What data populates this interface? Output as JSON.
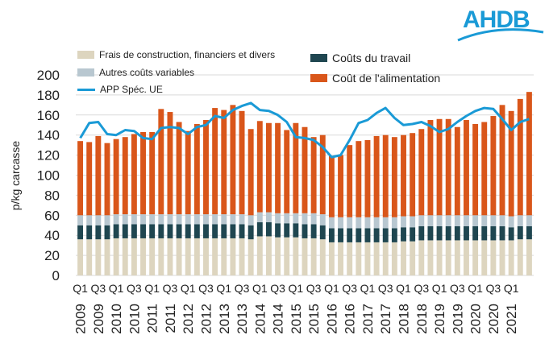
{
  "logo": {
    "text": "AHDB",
    "color": "#1a9ad6"
  },
  "colors": {
    "construction": "#ddd5bf",
    "variables": "#b8c7d0",
    "travail": "#1f4650",
    "alimentation": "#d9561a",
    "app": "#1a9ad6",
    "grid": "#d9d9d9"
  },
  "legend": {
    "construction": "Frais de construction, financiers et divers",
    "variables": "Autres coûts variables",
    "app": "APP Spéc. UE",
    "travail": "Coûts du travail",
    "alimentation": "Coût de l'alimentation"
  },
  "chart_data": {
    "type": "bar",
    "stacked": true,
    "ylabel": "p/kg carcasse",
    "xlabel": "",
    "ylim": [
      0,
      200
    ],
    "yticks": [
      0,
      20,
      40,
      60,
      80,
      100,
      120,
      140,
      160,
      180,
      200
    ],
    "grid": "horizontal",
    "categories": [
      "Q1 2009",
      "Q2 2009",
      "Q3 2009",
      "Q4 2009",
      "Q1 2010",
      "Q2 2010",
      "Q3 2010",
      "Q4 2010",
      "Q1 2011",
      "Q2 2011",
      "Q3 2011",
      "Q4 2011",
      "Q1 2012",
      "Q2 2012",
      "Q3 2012",
      "Q4 2012",
      "Q1 2013",
      "Q2 2013",
      "Q3 2013",
      "Q4 2013",
      "Q1 2014",
      "Q2 2014",
      "Q3 2014",
      "Q4 2014",
      "Q1 2015",
      "Q2 2015",
      "Q3 2015",
      "Q4 2015",
      "Q1 2016",
      "Q2 2016",
      "Q3 2016",
      "Q4 2016",
      "Q1 2017",
      "Q2 2017",
      "Q3 2017",
      "Q4 2017",
      "Q1 2018",
      "Q2 2018",
      "Q3 2018",
      "Q4 2018",
      "Q1 2019",
      "Q2 2019",
      "Q3 2019",
      "Q4 2019",
      "Q1 2020",
      "Q2 2020",
      "Q3 2020",
      "Q4 2020",
      "Q1 2021",
      "Q2 2021",
      "Q3 2021"
    ],
    "tick_labels": [
      {
        "q": "Q1",
        "year": "2009"
      },
      {
        "q": "Q3",
        "year": "2009"
      },
      {
        "q": "Q1",
        "year": "2010"
      },
      {
        "q": "Q3",
        "year": "2010"
      },
      {
        "q": "Q1",
        "year": "2011"
      },
      {
        "q": "Q3",
        "year": "2011"
      },
      {
        "q": "Q1",
        "year": "2012"
      },
      {
        "q": "Q3",
        "year": "2012"
      },
      {
        "q": "Q1",
        "year": "2013"
      },
      {
        "q": "Q3",
        "year": "2013"
      },
      {
        "q": "Q1",
        "year": "2014"
      },
      {
        "q": "Q3",
        "year": "2014"
      },
      {
        "q": "Q1",
        "year": "2015"
      },
      {
        "q": "Q3",
        "year": "2015"
      },
      {
        "q": "Q1",
        "year": "2016"
      },
      {
        "q": "Q3",
        "year": "2016"
      },
      {
        "q": "Q1",
        "year": "2017"
      },
      {
        "q": "Q3",
        "year": "2017"
      },
      {
        "q": "Q1",
        "year": "2018"
      },
      {
        "q": "Q3",
        "year": "2018"
      },
      {
        "q": "Q1",
        "year": "2019"
      },
      {
        "q": "Q3",
        "year": "2019"
      },
      {
        "q": "Q1",
        "year": "2020"
      },
      {
        "q": "Q3",
        "year": "2020"
      },
      {
        "q": "Q1",
        "year": "2021"
      }
    ],
    "series": [
      {
        "name": "Frais de construction, financiers et divers",
        "values": [
          36,
          36,
          36,
          36,
          37,
          37,
          37,
          37,
          37,
          37,
          37,
          37,
          37,
          37,
          37,
          37,
          37,
          37,
          37,
          36,
          39,
          39,
          38,
          38,
          38,
          37,
          37,
          36,
          33,
          33,
          33,
          33,
          33,
          33,
          33,
          33,
          34,
          34,
          35,
          35,
          35,
          35,
          35,
          35,
          35,
          35,
          35,
          35,
          35,
          36,
          36
        ]
      },
      {
        "name": "Coûts du travail",
        "values": [
          14,
          14,
          14,
          14,
          14,
          14,
          14,
          14,
          14,
          14,
          14,
          14,
          14,
          14,
          14,
          14,
          14,
          14,
          14,
          14,
          14,
          14,
          14,
          14,
          14,
          14,
          14,
          14,
          14,
          14,
          14,
          14,
          14,
          14,
          14,
          14,
          14,
          14,
          14,
          14,
          14,
          14,
          14,
          14,
          14,
          14,
          14,
          14,
          13,
          13,
          13
        ]
      },
      {
        "name": "Autres coûts variables",
        "values": [
          10,
          10,
          10,
          10,
          10,
          10,
          10,
          10,
          10,
          10,
          10,
          10,
          10,
          10,
          10,
          10,
          10,
          10,
          10,
          10,
          10,
          10,
          10,
          10,
          10,
          11,
          11,
          11,
          11,
          11,
          11,
          11,
          11,
          11,
          11,
          11,
          11,
          11,
          11,
          11,
          11,
          11,
          11,
          11,
          11,
          11,
          11,
          11,
          11,
          11,
          11
        ]
      },
      {
        "name": "Coût de l'alimentation",
        "values": [
          74,
          73,
          79,
          72,
          75,
          77,
          80,
          82,
          82,
          105,
          102,
          92,
          83,
          90,
          94,
          106,
          104,
          109,
          103,
          86,
          91,
          89,
          90,
          83,
          90,
          86,
          76,
          79,
          61,
          62,
          72,
          76,
          77,
          81,
          82,
          80,
          81,
          83,
          86,
          95,
          96,
          96,
          88,
          95,
          91,
          93,
          99,
          110,
          105,
          116,
          123
        ]
      },
      {
        "name": "APP Spéc. UE",
        "type": "line",
        "values": [
          137,
          152,
          153,
          141,
          140,
          145,
          144,
          137,
          136,
          147,
          148,
          147,
          141,
          148,
          150,
          159,
          157,
          165,
          169,
          172,
          165,
          164,
          160,
          153,
          138,
          137,
          135,
          128,
          118,
          120,
          135,
          152,
          155,
          162,
          167,
          157,
          150,
          151,
          153,
          149,
          143,
          146,
          153,
          159,
          164,
          167,
          166,
          156,
          145,
          153,
          156
        ]
      }
    ]
  }
}
